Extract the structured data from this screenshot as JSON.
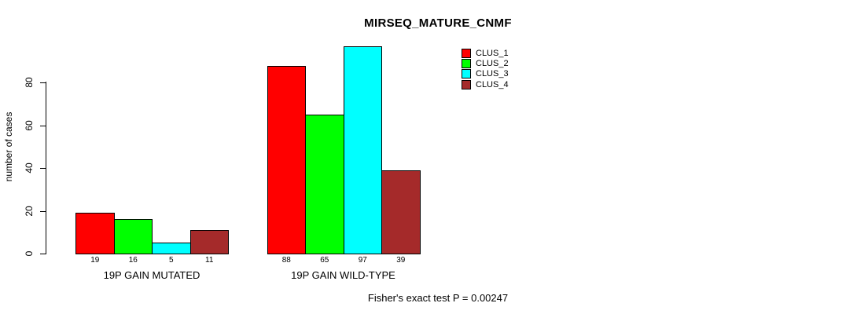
{
  "chart_data": {
    "type": "bar",
    "title": "MIRSEQ_MATURE_CNMF",
    "ylabel": "number of cases",
    "xlabel": "",
    "categories": [
      "19P GAIN MUTATED",
      "19P GAIN WILD-TYPE"
    ],
    "series": [
      {
        "name": "CLUS_1",
        "color": "#ff0000",
        "values": [
          19,
          88
        ]
      },
      {
        "name": "CLUS_2",
        "color": "#00ff00",
        "values": [
          16,
          65
        ]
      },
      {
        "name": "CLUS_3",
        "color": "#00ffff",
        "values": [
          5,
          97
        ]
      },
      {
        "name": "CLUS_4",
        "color": "#a52a2a",
        "values": [
          11,
          39
        ]
      }
    ],
    "yticks": [
      0,
      20,
      40,
      60,
      80
    ],
    "ylim": [
      0,
      100
    ],
    "grid": false,
    "bar_value_labels": [
      [
        19,
        16,
        5,
        11
      ],
      [
        88,
        65,
        97,
        39
      ]
    ],
    "legend_position": "top-right",
    "legend_entries": [
      "CLUS_1",
      "CLUS_2",
      "CLUS_3",
      "CLUS_4"
    ],
    "annotation": "Fisher's exact test P = 0.00247"
  }
}
